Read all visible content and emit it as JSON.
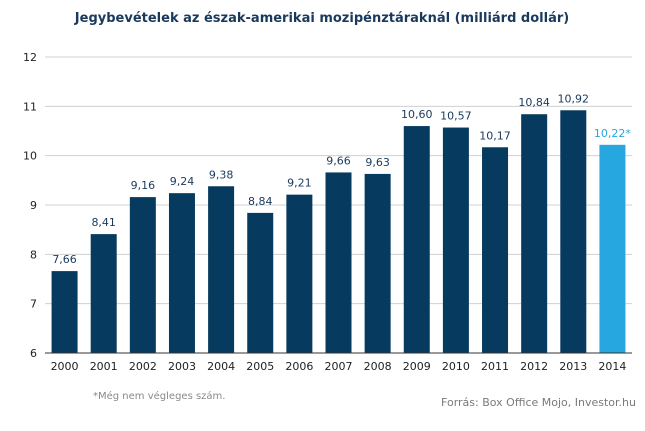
{
  "chart_data": {
    "type": "bar",
    "title": "Jegybevételek  az észak-amerikai  mozipénztáraknál  (milliárd dollár)",
    "xlabel": "",
    "ylabel": "",
    "categories": [
      "2000",
      "2001",
      "2002",
      "2003",
      "2004",
      "2005",
      "2006",
      "2007",
      "2008",
      "2009",
      "2010",
      "2011",
      "2012",
      "2013",
      "2014"
    ],
    "values": [
      7.66,
      8.41,
      9.16,
      9.24,
      9.38,
      8.84,
      9.21,
      9.66,
      9.63,
      10.6,
      10.57,
      10.17,
      10.84,
      10.92,
      10.22
    ],
    "value_labels": [
      "7,66",
      "8,41",
      "9,16",
      "9,24",
      "9,38",
      "8,84",
      "9,21",
      "9,66",
      "9,63",
      "10,60",
      "10,57",
      "10,17",
      "10,84",
      "10,92",
      "10,22*"
    ],
    "ylim": [
      6,
      12
    ],
    "yticks": [
      "6",
      "7",
      "8",
      "9",
      "10",
      "11",
      "12"
    ],
    "grid": true,
    "colors": {
      "bar": "#073a5f",
      "highlight": "#27a7df",
      "grid": "#d0d0d0"
    },
    "highlight_index": 14,
    "footnote": "*Még nem végleges szám.",
    "source": "Forrás: Box Office Mojo, Investor.hu"
  }
}
